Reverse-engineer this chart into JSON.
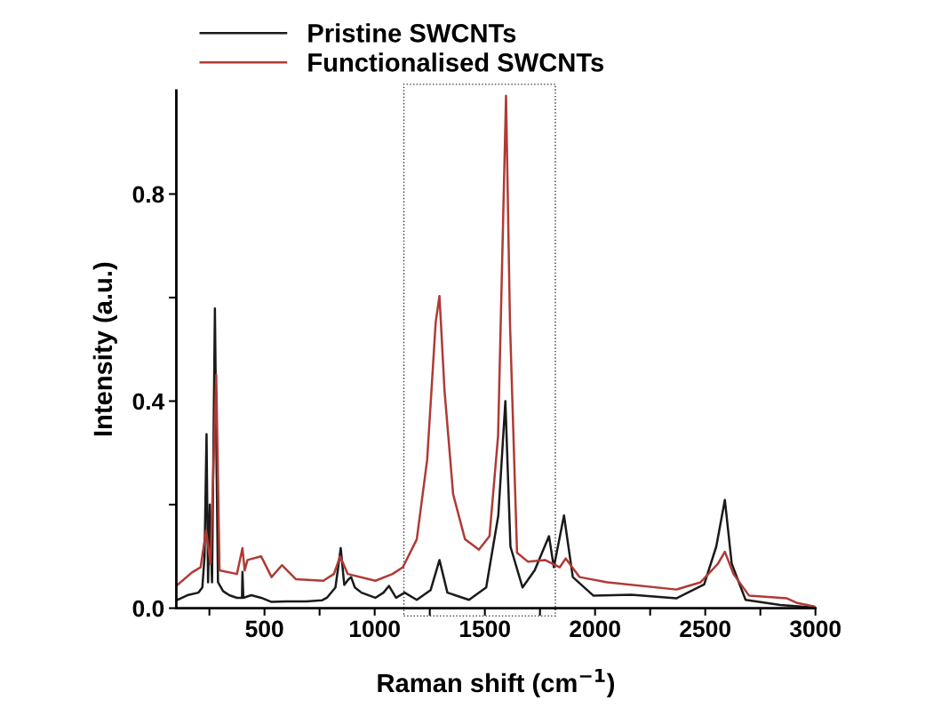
{
  "chart_data": {
    "type": "line",
    "xlabel": "Raman shift (cm$^{−1}$)",
    "ylabel": "Intensity (a.u.)",
    "xlim": [
      100,
      3000
    ],
    "ylim": [
      0,
      1.0
    ],
    "xticks": [
      {
        "value": 250,
        "label": null
      },
      500,
      {
        "value": 750,
        "label": null
      },
      1000,
      {
        "value": 1250,
        "label": null
      },
      1500,
      {
        "value": 1750,
        "label": null
      },
      2000,
      {
        "value": 2250,
        "label": null
      },
      2500,
      {
        "value": 2750,
        "label": null
      },
      3000
    ],
    "yticks": [
      {
        "value": 0,
        "label": "0.0"
      },
      {
        "value": 0.2,
        "label": null
      },
      0.4,
      {
        "value": 0.6,
        "label": null
      },
      0.8
    ],
    "grid": false,
    "legend": "top",
    "marker": "none",
    "line_style": "solid",
    "series": [
      {
        "name": "Pristine SWCNTs",
        "color": "#1a1a1a",
        "x": [
          100,
          150,
          200,
          218,
          228,
          237,
          244,
          252,
          262,
          275,
          282,
          289,
          312,
          340,
          375,
          398,
          400,
          404,
          440,
          485,
          532,
          600,
          689,
          760,
          783,
          822,
          846,
          862,
          880,
          893,
          910,
          940,
          1003,
          1040,
          1065,
          1097,
          1136,
          1191,
          1254,
          1294,
          1330,
          1428,
          1506,
          1561,
          1593,
          1616,
          1671,
          1726,
          1791,
          1813,
          1859,
          1899,
          1993,
          2165,
          2369,
          2495,
          2550,
          2589,
          2620,
          2683,
          2840,
          2997
        ],
        "values": [
          0.015,
          0.025,
          0.03,
          0.04,
          0.1,
          0.336,
          0.05,
          0.2,
          0.05,
          0.579,
          0.3,
          0.05,
          0.033,
          0.025,
          0.02,
          0.02,
          0.07,
          0.02,
          0.025,
          0.02,
          0.012,
          0.013,
          0.013,
          0.015,
          0.02,
          0.04,
          0.116,
          0.045,
          0.055,
          0.06,
          0.04,
          0.03,
          0.02,
          0.03,
          0.043,
          0.02,
          0.03,
          0.016,
          0.035,
          0.093,
          0.03,
          0.016,
          0.04,
          0.179,
          0.4,
          0.119,
          0.04,
          0.073,
          0.139,
          0.079,
          0.179,
          0.06,
          0.024,
          0.026,
          0.019,
          0.046,
          0.119,
          0.209,
          0.086,
          0.016,
          0.006,
          0.001
        ]
      },
      {
        "name": "Functionalised SWCNTs",
        "color": "#b03a35",
        "x": [
          100,
          171,
          210,
          235,
          255,
          281,
          296,
          375,
          400,
          410,
          423,
          485,
          532,
          579,
          642,
          767,
          815,
          843,
          878,
          1003,
          1081,
          1128,
          1191,
          1238,
          1277,
          1294,
          1317,
          1356,
          1410,
          1473,
          1521,
          1560,
          1596,
          1614,
          1646,
          1695,
          1773,
          1840,
          1867,
          1930,
          2056,
          2369,
          2479,
          2558,
          2589,
          2628,
          2699,
          2871,
          2918,
          2997
        ],
        "values": [
          0.043,
          0.069,
          0.079,
          0.15,
          0.086,
          0.45,
          0.073,
          0.066,
          0.116,
          0.073,
          0.093,
          0.1,
          0.06,
          0.083,
          0.056,
          0.053,
          0.066,
          0.1,
          0.066,
          0.053,
          0.066,
          0.079,
          0.133,
          0.286,
          0.553,
          0.603,
          0.42,
          0.22,
          0.133,
          0.113,
          0.139,
          0.333,
          0.99,
          0.55,
          0.107,
          0.09,
          0.093,
          0.079,
          0.096,
          0.06,
          0.05,
          0.036,
          0.05,
          0.086,
          0.109,
          0.066,
          0.024,
          0.019,
          0.01,
          0.003
        ]
      }
    ]
  }
}
